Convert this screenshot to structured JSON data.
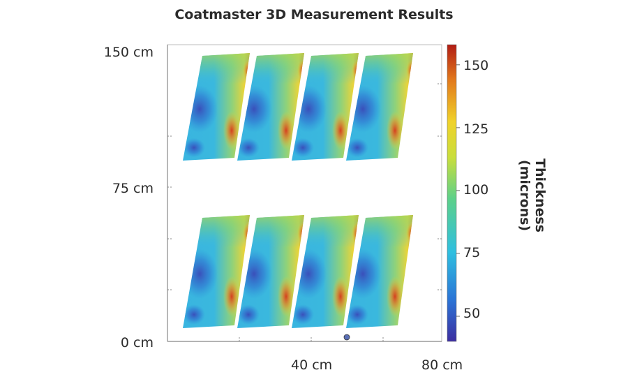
{
  "chart_data": {
    "type": "heatmap",
    "title": "Coatmaster 3D Measurement Results",
    "xlabel": "",
    "ylabel": "",
    "x_ticks": [
      "40 cm",
      "80 cm"
    ],
    "y_ticks": [
      "150 cm",
      "75 cm",
      "0 cm"
    ],
    "colorbar": {
      "label": "Thickness (microns)",
      "ticks": [
        50,
        75,
        100,
        125,
        150
      ],
      "range": [
        40,
        158
      ],
      "colormap": [
        "#3c2ea0",
        "#2b74d6",
        "#2fbfe0",
        "#5cd08a",
        "#c9de3c",
        "#f0d22a",
        "#e27a1c",
        "#b11c14"
      ]
    },
    "panels": [
      {
        "row": "top",
        "index": 1
      },
      {
        "row": "top",
        "index": 2
      },
      {
        "row": "top",
        "index": 3
      },
      {
        "row": "top",
        "index": 4
      },
      {
        "row": "bottom",
        "index": 1
      },
      {
        "row": "bottom",
        "index": 2
      },
      {
        "row": "bottom",
        "index": 3
      },
      {
        "row": "bottom",
        "index": 4
      }
    ]
  }
}
